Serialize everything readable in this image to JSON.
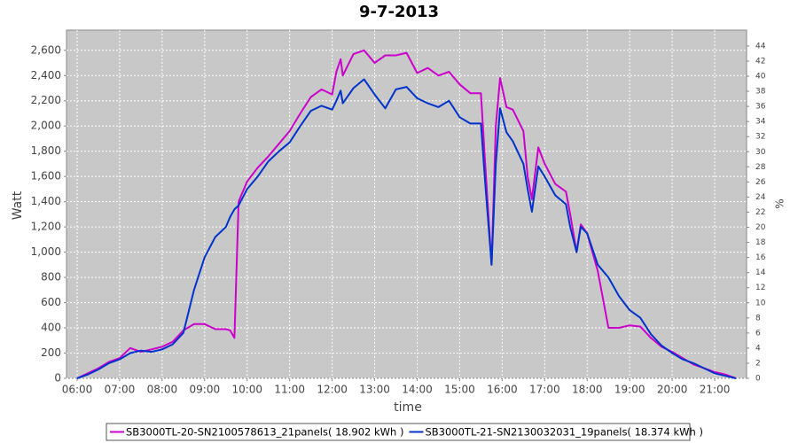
{
  "chart_data": {
    "type": "line",
    "title": "9-7-2013",
    "x_label": "time",
    "y_label": "Watt",
    "y2_label": "%",
    "x": [
      6.0,
      6.25,
      6.5,
      6.75,
      7.0,
      7.25,
      7.5,
      7.75,
      8.0,
      8.25,
      8.5,
      8.75,
      9.0,
      9.25,
      9.5,
      9.6,
      9.7,
      9.8,
      10.0,
      10.25,
      10.5,
      10.75,
      11.0,
      11.25,
      11.5,
      11.75,
      12.0,
      12.1,
      12.2,
      12.25,
      12.5,
      12.75,
      13.0,
      13.25,
      13.5,
      13.75,
      14.0,
      14.25,
      14.5,
      14.75,
      15.0,
      15.25,
      15.5,
      15.6,
      15.75,
      15.85,
      15.95,
      16.1,
      16.25,
      16.5,
      16.6,
      16.7,
      16.85,
      17.0,
      17.25,
      17.5,
      17.6,
      17.75,
      17.85,
      18.0,
      18.25,
      18.5,
      18.75,
      19.0,
      19.25,
      19.5,
      19.75,
      20.0,
      20.25,
      20.5,
      20.75,
      21.0,
      21.25,
      21.5
    ],
    "series": [
      {
        "name": "SB3000TL-20-SN2100578613_21panels( 18.902 kWh  )",
        "color": "#cc00cc",
        "values": [
          0,
          40,
          80,
          130,
          160,
          240,
          210,
          230,
          250,
          290,
          380,
          430,
          430,
          390,
          390,
          380,
          320,
          1400,
          1560,
          1670,
          1760,
          1860,
          1960,
          2100,
          2230,
          2290,
          2250,
          2430,
          2530,
          2400,
          2570,
          2600,
          2500,
          2560,
          2560,
          2580,
          2420,
          2460,
          2400,
          2430,
          2330,
          2260,
          2260,
          1700,
          900,
          2000,
          2380,
          2150,
          2130,
          1960,
          1600,
          1420,
          1830,
          1700,
          1540,
          1480,
          1300,
          1000,
          1220,
          1150,
          850,
          400,
          400,
          420,
          410,
          320,
          250,
          210,
          160,
          110,
          80,
          50,
          30,
          0
        ]
      },
      {
        "name": "SB3000TL-21-SN2130032031_19panels( 18.374 kWh  )",
        "color": "#0033cc",
        "values": [
          0,
          30,
          70,
          120,
          150,
          200,
          220,
          210,
          230,
          270,
          360,
          700,
          960,
          1120,
          1200,
          1280,
          1340,
          1370,
          1500,
          1600,
          1720,
          1800,
          1870,
          2000,
          2120,
          2160,
          2130,
          2200,
          2280,
          2180,
          2300,
          2370,
          2250,
          2140,
          2290,
          2310,
          2220,
          2180,
          2150,
          2200,
          2070,
          2020,
          2020,
          1550,
          900,
          1700,
          2140,
          1950,
          1880,
          1700,
          1500,
          1320,
          1680,
          1600,
          1450,
          1380,
          1200,
          1000,
          1200,
          1150,
          900,
          800,
          650,
          540,
          480,
          350,
          260,
          200,
          150,
          120,
          80,
          40,
          20,
          0
        ]
      }
    ],
    "xlim": [
      5.75,
      21.75
    ],
    "xticks": [
      {
        "value": 6,
        "label": "06:00"
      },
      {
        "value": 7,
        "label": "07:00"
      },
      {
        "value": 8,
        "label": "08:00"
      },
      {
        "value": 9,
        "label": "09:00"
      },
      {
        "value": 10,
        "label": "10:00"
      },
      {
        "value": 11,
        "label": "11:00"
      },
      {
        "value": 12,
        "label": "12:00"
      },
      {
        "value": 13,
        "label": "13:00"
      },
      {
        "value": 14,
        "label": "14:00"
      },
      {
        "value": 15,
        "label": "15:00"
      },
      {
        "value": 16,
        "label": "16:00"
      },
      {
        "value": 17,
        "label": "17:00"
      },
      {
        "value": 18,
        "label": "18:00"
      },
      {
        "value": 19,
        "label": "19:00"
      },
      {
        "value": 20,
        "label": "20:00"
      },
      {
        "value": 21,
        "label": "21:00"
      }
    ],
    "ylim": [
      0,
      2760
    ],
    "yticks": [
      0,
      200,
      400,
      600,
      800,
      {
        "value": 1000,
        "label": "1,000"
      },
      {
        "value": 1200,
        "label": "1,200"
      },
      {
        "value": 1400,
        "label": "1,400"
      },
      {
        "value": 1600,
        "label": "1,600"
      },
      {
        "value": 1800,
        "label": "1,800"
      },
      {
        "value": 2000,
        "label": "2,000"
      },
      {
        "value": 2200,
        "label": "2,200"
      },
      {
        "value": 2400,
        "label": "2,400"
      },
      {
        "value": 2600,
        "label": "2,600"
      }
    ],
    "y2lim": [
      0,
      46.1
    ],
    "y2ticks": [
      0,
      2,
      4,
      6,
      8,
      10,
      12,
      14,
      16,
      18,
      20,
      22,
      24,
      26,
      28,
      30,
      32,
      34,
      36,
      38,
      40,
      42,
      44
    ],
    "grid": true,
    "legend": "bottom"
  }
}
